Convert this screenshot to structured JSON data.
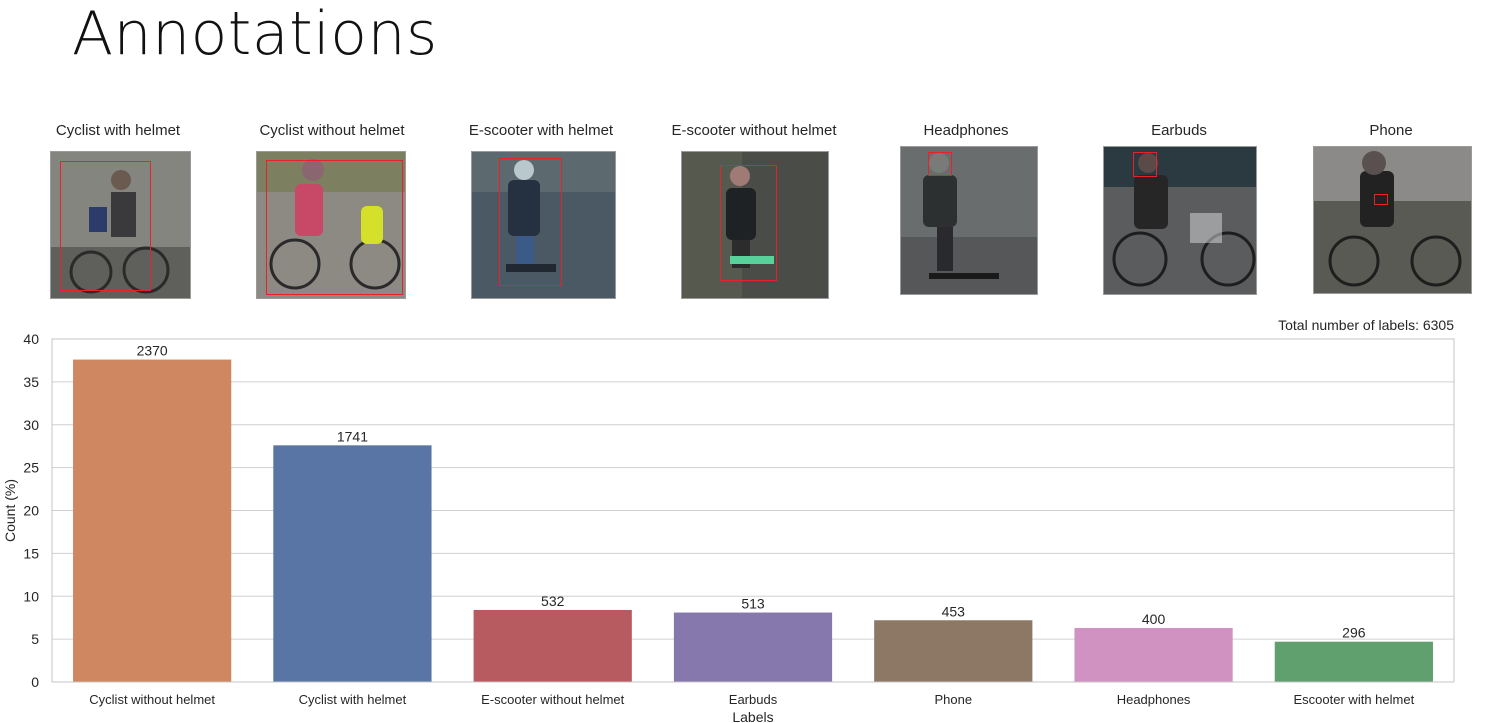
{
  "slide": {
    "title": "Annotations"
  },
  "examples": [
    {
      "label": "Cyclist with helmet",
      "icon": "cyclist-photo"
    },
    {
      "label": "Cyclist without helmet",
      "icon": "cyclist-photo"
    },
    {
      "label": "E-scooter with helmet",
      "icon": "scooter-photo"
    },
    {
      "label": "E-scooter without helmet",
      "icon": "scooter-photo"
    },
    {
      "label": "Headphones",
      "icon": "scooter-photo"
    },
    {
      "label": "Earbuds",
      "icon": "cyclist-photo"
    },
    {
      "label": "Phone",
      "icon": "cyclist-photo"
    }
  ],
  "chart_data": {
    "type": "bar",
    "categories": [
      "Cyclist without helmet",
      "Cyclist with helmet",
      "E-scooter without helmet",
      "Earbuds",
      "Phone",
      "Headphones",
      "Escooter with helmet"
    ],
    "values": [
      37.6,
      27.6,
      8.4,
      8.1,
      7.2,
      6.3,
      4.7
    ],
    "data_labels": [
      "2370",
      "1741",
      "532",
      "513",
      "453",
      "400",
      "296"
    ],
    "colors": [
      "#cf8761",
      "#5975a6",
      "#b75b61",
      "#8678ad",
      "#8d7866",
      "#d093c1",
      "#5fa06e"
    ],
    "xlabel": "Labels",
    "ylabel": "Count (%)",
    "ylim": [
      0,
      40
    ],
    "yticks": [
      0,
      5,
      10,
      15,
      20,
      25,
      30,
      35,
      40
    ],
    "grid": true,
    "annotation": "Total number of labels: 6305"
  }
}
